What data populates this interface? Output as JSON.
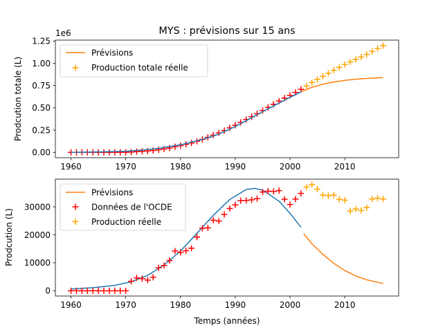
{
  "figure": {
    "title": "MYS : prévisions sur 15 ans",
    "xlabel": "Temps (années)"
  },
  "colors": {
    "fit": "#1f77b4",
    "forecast": "#ff7f0e",
    "oecd": "#ff0000",
    "real": "#ffa500"
  },
  "chart_data": [
    {
      "type": "line",
      "ylabel": "Prodcution totale (L)",
      "offset_text": "1e6",
      "xlim": [
        1957.15,
        2019.85
      ],
      "ylim": [
        -0.06,
        1.26
      ],
      "xticks": [
        1960,
        1970,
        1980,
        1990,
        2000,
        2010
      ],
      "yticks": [
        0.0,
        0.25,
        0.5,
        0.75,
        1.0,
        1.25
      ],
      "ytick_labels": [
        "0.00",
        "0.25",
        "0.50",
        "0.75",
        "1.00",
        "1.25"
      ],
      "legend": {
        "position": "upper-left",
        "entries": [
          "Prévisions",
          "Production totale réelle"
        ]
      },
      "fit_curve": {
        "x": [
          1960,
          1965,
          1970,
          1973,
          1976,
          1980,
          1984,
          1987,
          1990,
          1993,
          1996,
          1999,
          2002
        ],
        "y": [
          0.0,
          0.005,
          0.012,
          0.025,
          0.045,
          0.085,
          0.145,
          0.205,
          0.29,
          0.39,
          0.49,
          0.585,
          0.68
        ]
      },
      "forecast_curve": {
        "x": [
          2002,
          2004,
          2006,
          2008,
          2010,
          2012,
          2014,
          2017
        ],
        "y": [
          0.68,
          0.73,
          0.765,
          0.79,
          0.808,
          0.821,
          0.83,
          0.84
        ]
      },
      "oecd_points": {
        "x": [
          1960,
          1961,
          1962,
          1963,
          1964,
          1965,
          1966,
          1967,
          1968,
          1969,
          1970,
          1971,
          1972,
          1973,
          1974,
          1975,
          1976,
          1977,
          1978,
          1979,
          1980,
          1981,
          1982,
          1983,
          1984,
          1985,
          1986,
          1987,
          1988,
          1989,
          1990,
          1991,
          1992,
          1993,
          1994,
          1995,
          1996,
          1997,
          1998,
          1999,
          2000,
          2001,
          2002
        ],
        "y": [
          0.0,
          0.0,
          0.0,
          0.0,
          0.0,
          0.0,
          0.0,
          0.0,
          0.0,
          0.0,
          0.0,
          0.003,
          0.008,
          0.012,
          0.016,
          0.021,
          0.029,
          0.038,
          0.049,
          0.063,
          0.076,
          0.09,
          0.105,
          0.124,
          0.146,
          0.168,
          0.193,
          0.218,
          0.245,
          0.275,
          0.305,
          0.337,
          0.369,
          0.401,
          0.434,
          0.469,
          0.505,
          0.54,
          0.576,
          0.609,
          0.64,
          0.673,
          0.708
        ]
      },
      "real_points": {
        "x": [
          2003,
          2004,
          2005,
          2006,
          2007,
          2008,
          2009,
          2010,
          2011,
          2012,
          2013,
          2014,
          2015,
          2016,
          2017
        ],
        "y": [
          0.745,
          0.783,
          0.819,
          0.853,
          0.887,
          0.921,
          0.954,
          0.987,
          1.015,
          1.044,
          1.07,
          1.1,
          1.133,
          1.166,
          1.198
        ]
      }
    },
    {
      "type": "line",
      "ylabel": "Prodcution (L)",
      "xlim": [
        1957.15,
        2019.85
      ],
      "ylim": [
        -1900,
        39900
      ],
      "xticks": [
        1960,
        1970,
        1980,
        1990,
        2000,
        2010
      ],
      "yticks": [
        0,
        10000,
        20000,
        30000
      ],
      "ytick_labels": [
        "0",
        "10000",
        "20000",
        "30000"
      ],
      "legend": {
        "position": "upper-left",
        "entries": [
          "Prévisions",
          "Données de l'OCDE",
          "Production réelle"
        ]
      },
      "fit_curve": {
        "x": [
          1960,
          1964,
          1968,
          1971,
          1974,
          1977,
          1980,
          1983,
          1986,
          1989,
          1992,
          1993.5,
          1995,
          1998,
          2000,
          2002
        ],
        "y": [
          600,
          1100,
          1900,
          3200,
          5500,
          9200,
          14200,
          20500,
          27000,
          32600,
          36200,
          36600,
          36000,
          32000,
          27700,
          22700
        ]
      },
      "forecast_curve": {
        "x": [
          2002.5,
          2004,
          2006,
          2008,
          2010,
          2012,
          2014,
          2017
        ],
        "y": [
          20400,
          16800,
          13000,
          9800,
          7200,
          5300,
          3900,
          2600
        ]
      },
      "oecd_points": {
        "x": [
          1960,
          1961,
          1962,
          1963,
          1964,
          1965,
          1966,
          1967,
          1968,
          1969,
          1970,
          1971,
          1972,
          1973,
          1974,
          1975,
          1976,
          1977,
          1978,
          1979,
          1980,
          1981,
          1982,
          1983,
          1984,
          1985,
          1986,
          1987,
          1988,
          1989,
          1990,
          1991,
          1992,
          1993,
          1994,
          1995,
          1996,
          1997,
          1998,
          1999,
          2000,
          2001,
          2002
        ],
        "y": [
          0,
          0,
          0,
          0,
          0,
          0,
          0,
          0,
          0,
          0,
          0,
          3400,
          4600,
          4300,
          3800,
          4800,
          8200,
          9000,
          10800,
          14200,
          13700,
          14300,
          15200,
          19200,
          22300,
          22500,
          25200,
          24900,
          27300,
          29400,
          30700,
          32200,
          32300,
          32500,
          32900,
          35300,
          35600,
          35500,
          35800,
          32700,
          30800,
          32800,
          34800
        ]
      },
      "real_points": {
        "x": [
          2003,
          2004,
          2005,
          2006,
          2007,
          2008,
          2009,
          2010,
          2011,
          2012,
          2013,
          2014,
          2015,
          2016,
          2017
        ],
        "y": [
          37100,
          37900,
          36300,
          34200,
          34000,
          34200,
          32700,
          32400,
          28500,
          29200,
          28700,
          29700,
          32800,
          33100,
          32800
        ]
      }
    }
  ]
}
